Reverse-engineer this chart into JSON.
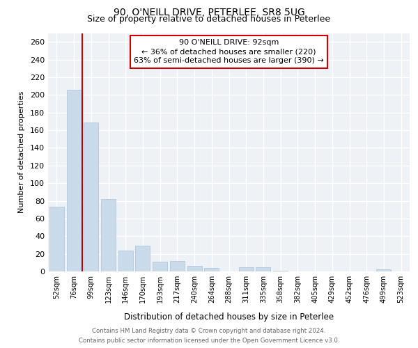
{
  "title": "90, O'NEILL DRIVE, PETERLEE, SR8 5UG",
  "subtitle": "Size of property relative to detached houses in Peterlee",
  "xlabel": "Distribution of detached houses by size in Peterlee",
  "ylabel": "Number of detached properties",
  "categories": [
    "52sqm",
    "76sqm",
    "99sqm",
    "123sqm",
    "146sqm",
    "170sqm",
    "193sqm",
    "217sqm",
    "240sqm",
    "264sqm",
    "288sqm",
    "311sqm",
    "335sqm",
    "358sqm",
    "382sqm",
    "405sqm",
    "429sqm",
    "452sqm",
    "476sqm",
    "499sqm",
    "523sqm"
  ],
  "values": [
    73,
    206,
    169,
    82,
    24,
    29,
    11,
    12,
    6,
    4,
    0,
    5,
    5,
    1,
    0,
    0,
    0,
    0,
    0,
    2,
    0
  ],
  "bar_color": "#c9daea",
  "bar_edge_color": "#b0c8dc",
  "marker_index": 2,
  "marker_line_color": "#cc0000",
  "marker_label": "90 O'NEILL DRIVE: 92sqm",
  "annotation_line1": "← 36% of detached houses are smaller (220)",
  "annotation_line2": "63% of semi-detached houses are larger (390) →",
  "annotation_box_edge": "#cc0000",
  "ylim": [
    0,
    270
  ],
  "yticks": [
    0,
    20,
    40,
    60,
    80,
    100,
    120,
    140,
    160,
    180,
    200,
    220,
    240,
    260
  ],
  "background_color": "#eef2f7",
  "footer_line1": "Contains HM Land Registry data © Crown copyright and database right 2024.",
  "footer_line2": "Contains public sector information licensed under the Open Government Licence v3.0."
}
